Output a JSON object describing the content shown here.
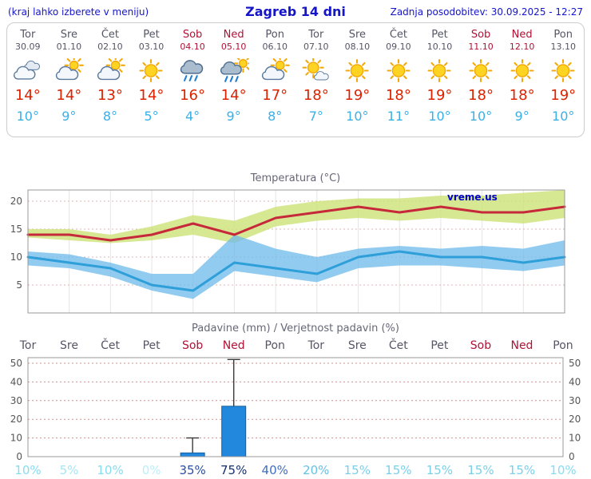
{
  "header": {
    "menu_note": "(kraj lahko izberete v meniju)",
    "title": "Zagreb 14 dni",
    "last_update": "Zadnja posodobitev: 30.09.2025 - 12:27"
  },
  "colors": {
    "header_blue": "#1515cc",
    "weekend_red": "#b01235",
    "tmax_red": "#dd2200",
    "tmin_blue": "#3ab0e8"
  },
  "days": [
    {
      "name": "Tor",
      "date": "30.09",
      "weekend": false,
      "icon": "cloudy",
      "tmax": "14°",
      "tmin": "10°"
    },
    {
      "name": "Sre",
      "date": "01.10",
      "weekend": false,
      "icon": "partly-cloudy",
      "tmax": "14°",
      "tmin": "9°"
    },
    {
      "name": "Čet",
      "date": "02.10",
      "weekend": false,
      "icon": "partly-cloudy",
      "tmax": "13°",
      "tmin": "8°"
    },
    {
      "name": "Pet",
      "date": "03.10",
      "weekend": false,
      "icon": "sunny",
      "tmax": "14°",
      "tmin": "5°"
    },
    {
      "name": "Sob",
      "date": "04.10",
      "weekend": true,
      "icon": "rain",
      "tmax": "16°",
      "tmin": "4°"
    },
    {
      "name": "Ned",
      "date": "05.10",
      "weekend": true,
      "icon": "rain-sun",
      "tmax": "14°",
      "tmin": "9°"
    },
    {
      "name": "Pon",
      "date": "06.10",
      "weekend": false,
      "icon": "partly-cloudy",
      "tmax": "17°",
      "tmin": "8°"
    },
    {
      "name": "Tor",
      "date": "07.10",
      "weekend": false,
      "icon": "mostly-sunny",
      "tmax": "18°",
      "tmin": "7°"
    },
    {
      "name": "Sre",
      "date": "08.10",
      "weekend": false,
      "icon": "sunny",
      "tmax": "19°",
      "tmin": "10°"
    },
    {
      "name": "Čet",
      "date": "09.10",
      "weekend": false,
      "icon": "sunny",
      "tmax": "18°",
      "tmin": "11°"
    },
    {
      "name": "Pet",
      "date": "10.10",
      "weekend": false,
      "icon": "sunny",
      "tmax": "19°",
      "tmin": "10°"
    },
    {
      "name": "Sob",
      "date": "11.10",
      "weekend": true,
      "icon": "sunny",
      "tmax": "18°",
      "tmin": "10°"
    },
    {
      "name": "Ned",
      "date": "12.10",
      "weekend": true,
      "icon": "sunny",
      "tmax": "18°",
      "tmin": "9°"
    },
    {
      "name": "Pon",
      "date": "13.10",
      "weekend": false,
      "icon": "sunny",
      "tmax": "19°",
      "tmin": "10°"
    }
  ],
  "chart_data": [
    {
      "type": "line",
      "title": "Temperatura (°C)",
      "watermark": "vreme.us",
      "x_count": 14,
      "ylim": [
        0,
        22
      ],
      "yticks": [
        5,
        10,
        15,
        20
      ],
      "grid": true,
      "series": [
        {
          "name": "max-temperature",
          "color": "#c5293a",
          "width": 3,
          "values": [
            14,
            14,
            13,
            14,
            16,
            14,
            17,
            18,
            19,
            18,
            19,
            18,
            18,
            19
          ]
        },
        {
          "name": "min-temperature",
          "color": "#2e9fd8",
          "width": 3,
          "values": [
            10,
            9,
            8,
            5,
            4,
            9,
            8,
            7,
            10,
            11,
            10,
            10,
            9,
            10
          ]
        }
      ],
      "bands": [
        {
          "name": "max-temperature-range",
          "color": "rgba(205,226,120,0.80)",
          "upper": [
            15,
            15,
            14,
            15.5,
            17.5,
            16.5,
            19,
            20,
            20.5,
            20.5,
            21,
            21,
            21.5,
            22
          ],
          "lower": [
            13.5,
            13,
            12.5,
            13,
            14,
            12.5,
            15.5,
            16.5,
            17,
            16.5,
            17,
            16.5,
            16,
            17
          ]
        },
        {
          "name": "min-temperature-range",
          "color": "rgba(110,185,235,0.75)",
          "upper": [
            11,
            10.5,
            9,
            7,
            7,
            14,
            11.5,
            10,
            11.5,
            12,
            11.5,
            12,
            11.5,
            13
          ],
          "lower": [
            8.5,
            8,
            6.5,
            4,
            2.5,
            7.5,
            6.5,
            5.5,
            8,
            8.5,
            8.5,
            8,
            7.5,
            8.5
          ]
        }
      ]
    },
    {
      "type": "bar",
      "title": "Padavine (mm) / Verjetnost padavin (%)",
      "categories": [
        "Tor",
        "Sre",
        "Čet",
        "Pet",
        "Sob",
        "Ned",
        "Pon",
        "Tor",
        "Sre",
        "Čet",
        "Pet",
        "Sob",
        "Ned",
        "Pon"
      ],
      "weekend_mask": [
        0,
        0,
        0,
        0,
        1,
        1,
        0,
        0,
        0,
        0,
        0,
        1,
        1,
        0
      ],
      "ylim": [
        0,
        53
      ],
      "yticks": [
        0,
        10,
        20,
        30,
        40,
        50
      ],
      "values": [
        0,
        0,
        0,
        0,
        2,
        27,
        0,
        0,
        0,
        0,
        0,
        0,
        0,
        0
      ],
      "range_max": [
        null,
        null,
        null,
        null,
        10,
        52,
        null,
        null,
        null,
        null,
        null,
        null,
        null,
        null
      ],
      "bar_color": "#2288dd",
      "bar_border": "#135e9e",
      "probabilities": [
        "10%",
        "5%",
        "10%",
        "0%",
        "35%",
        "75%",
        "40%",
        "20%",
        "15%",
        "15%",
        "15%",
        "15%",
        "15%",
        "10%"
      ],
      "prob_colors": [
        "#86dcf0",
        "#a3e6f4",
        "#86dcf0",
        "#bceef8",
        "#2c4fa3",
        "#16306f",
        "#3e6fc2",
        "#63c2e6",
        "#79d0ea",
        "#79d0ea",
        "#79d0ea",
        "#79d0ea",
        "#79d0ea",
        "#86dcf0"
      ]
    }
  ]
}
